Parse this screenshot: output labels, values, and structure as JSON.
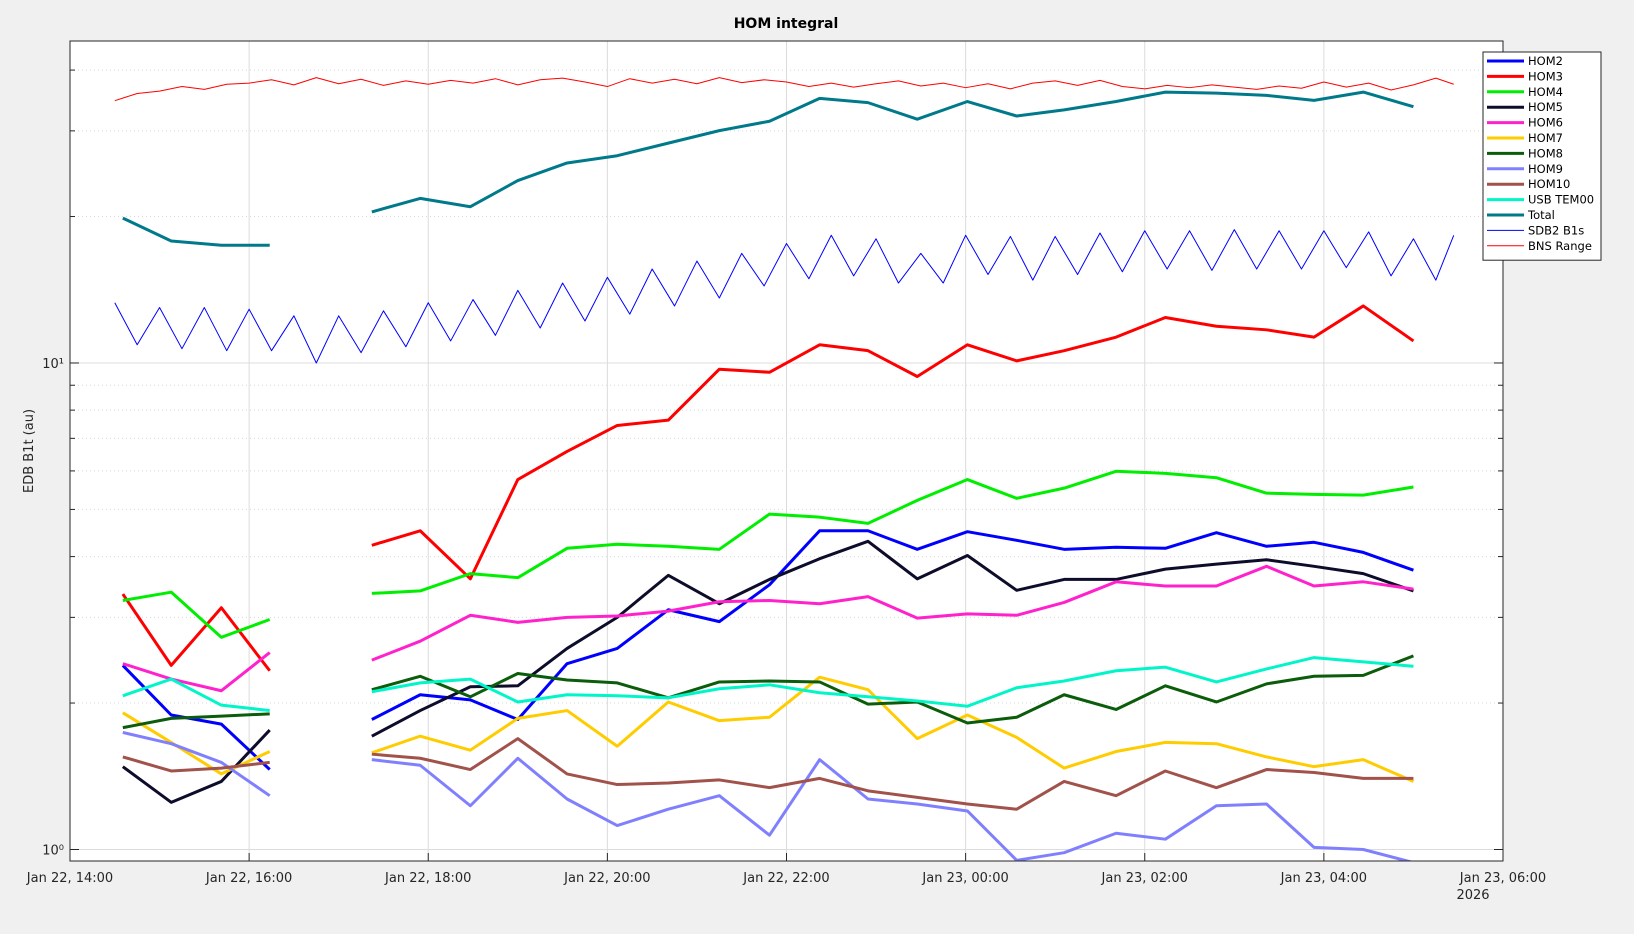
{
  "chart_data": {
    "type": "line",
    "title": "HOM integral",
    "ylabel": "EDB B1t (au)",
    "x_secondary_label": "2026",
    "yscale": "log",
    "grid": true,
    "minor_grid": true,
    "legend": "top-right",
    "xlim": [
      14,
      30
    ],
    "xticks": [
      {
        "value": 14,
        "label": "Jan 22, 14:00"
      },
      {
        "value": 16,
        "label": "Jan 22, 16:00"
      },
      {
        "value": 18,
        "label": "Jan 22, 18:00"
      },
      {
        "value": 20,
        "label": "Jan 22, 20:00"
      },
      {
        "value": 22,
        "label": "Jan 22, 22:00"
      },
      {
        "value": 24,
        "label": "Jan 23, 00:00"
      },
      {
        "value": 26,
        "label": "Jan 23, 02:00"
      },
      {
        "value": 28,
        "label": "Jan 23, 04:00"
      },
      {
        "value": 30,
        "label": "Jan 23, 06:00"
      }
    ],
    "ylim": [
      0.947,
      45.9
    ],
    "yticks": [
      {
        "value": 1,
        "label": "10⁰"
      },
      {
        "value": 10,
        "label": "10¹"
      }
    ],
    "yminorticks": [
      2,
      3,
      4,
      5,
      6,
      7,
      8,
      9,
      20,
      30,
      40
    ],
    "x": [
      14.59,
      15.13,
      15.69,
      16.23,
      16.8,
      17.37,
      17.91,
      18.47,
      19.0,
      19.55,
      20.11,
      20.68,
      21.25,
      21.81,
      22.37,
      22.91,
      23.46,
      24.02,
      24.57,
      25.1,
      25.68,
      26.23,
      26.8,
      27.36,
      27.89,
      28.44,
      29.0
    ],
    "series": [
      {
        "name": "HOM2",
        "color": "#0000ff",
        "width": 3,
        "values": [
          2.39,
          1.89,
          1.81,
          1.46,
          null,
          1.85,
          2.08,
          2.03,
          1.85,
          2.41,
          2.59,
          3.11,
          2.94,
          3.5,
          4.52,
          4.52,
          4.14,
          4.5,
          4.32,
          4.14,
          4.18,
          4.16,
          4.48,
          4.2,
          4.28,
          4.08,
          3.75
        ]
      },
      {
        "name": "HOM3",
        "color": "#ff0000",
        "width": 3,
        "values": [
          3.35,
          2.39,
          3.14,
          2.33,
          null,
          4.22,
          4.52,
          3.6,
          5.76,
          6.58,
          7.44,
          7.63,
          9.71,
          9.57,
          10.9,
          10.6,
          9.38,
          10.9,
          10.1,
          10.6,
          11.3,
          12.4,
          11.9,
          11.7,
          11.3,
          13.1,
          11.1
        ]
      },
      {
        "name": "HOM4",
        "color": "#00ee00",
        "width": 3,
        "values": [
          3.25,
          3.38,
          2.73,
          2.97,
          null,
          3.36,
          3.4,
          3.69,
          3.62,
          4.16,
          4.24,
          4.2,
          4.14,
          4.89,
          4.82,
          4.68,
          5.22,
          5.76,
          5.27,
          5.53,
          5.99,
          5.93,
          5.81,
          5.4,
          5.37,
          5.35,
          5.56
        ]
      },
      {
        "name": "HOM5",
        "color": "#0d0d2b",
        "width": 3,
        "values": [
          1.48,
          1.25,
          1.38,
          1.76,
          null,
          1.71,
          1.93,
          2.16,
          2.17,
          2.59,
          3.0,
          3.66,
          3.2,
          3.59,
          3.96,
          4.3,
          3.6,
          4.02,
          3.41,
          3.59,
          3.59,
          3.77,
          3.86,
          3.94,
          3.82,
          3.69,
          3.4
        ]
      },
      {
        "name": "HOM6",
        "color": "#ff22cc",
        "width": 3,
        "values": [
          2.41,
          2.24,
          2.12,
          2.54,
          null,
          2.45,
          2.68,
          3.03,
          2.93,
          3.0,
          3.02,
          3.09,
          3.23,
          3.25,
          3.2,
          3.31,
          2.99,
          3.05,
          3.03,
          3.22,
          3.55,
          3.48,
          3.48,
          3.82,
          3.48,
          3.55,
          3.43
        ]
      },
      {
        "name": "HOM7",
        "color": "#ffcc00",
        "width": 3,
        "values": [
          1.91,
          1.66,
          1.43,
          1.59,
          null,
          1.58,
          1.71,
          1.6,
          1.86,
          1.93,
          1.63,
          2.01,
          1.84,
          1.87,
          2.26,
          2.13,
          1.69,
          1.89,
          1.7,
          1.47,
          1.59,
          1.66,
          1.65,
          1.55,
          1.48,
          1.53,
          1.38
        ]
      },
      {
        "name": "HOM8",
        "color": "#0b5c0b",
        "width": 3,
        "values": [
          1.78,
          1.86,
          1.88,
          1.9,
          null,
          2.13,
          2.27,
          2.06,
          2.3,
          2.23,
          2.2,
          2.05,
          2.21,
          2.22,
          2.21,
          1.99,
          2.01,
          1.82,
          1.87,
          2.08,
          1.94,
          2.17,
          2.01,
          2.19,
          2.27,
          2.28,
          2.5
        ]
      },
      {
        "name": "HOM9",
        "color": "#8080ff",
        "width": 3,
        "values": [
          1.74,
          1.65,
          1.51,
          1.29,
          null,
          1.53,
          1.49,
          1.23,
          1.54,
          1.27,
          1.12,
          1.21,
          1.29,
          1.07,
          1.53,
          1.27,
          1.24,
          1.2,
          0.95,
          0.985,
          1.08,
          1.05,
          1.23,
          1.24,
          1.01,
          1.0,
          0.94
        ]
      },
      {
        "name": "HOM10",
        "color": "#a0524b",
        "width": 3,
        "values": [
          1.55,
          1.45,
          1.47,
          1.51,
          null,
          1.57,
          1.54,
          1.46,
          1.69,
          1.43,
          1.36,
          1.37,
          1.39,
          1.34,
          1.4,
          1.32,
          1.28,
          1.24,
          1.21,
          1.38,
          1.29,
          1.45,
          1.34,
          1.46,
          1.44,
          1.4,
          1.4
        ]
      },
      {
        "name": "USB TEM00",
        "color": "#00f5c8",
        "width": 3,
        "values": [
          2.07,
          2.24,
          1.98,
          1.93,
          null,
          2.11,
          2.2,
          2.24,
          2.01,
          2.08,
          2.07,
          2.05,
          2.14,
          2.18,
          2.1,
          2.06,
          2.02,
          1.97,
          2.15,
          2.22,
          2.33,
          2.37,
          2.21,
          2.35,
          2.48,
          2.43,
          2.38
        ]
      },
      {
        "name": "Total",
        "color": "#007a8a",
        "width": 3,
        "values": [
          19.85,
          17.81,
          17.46,
          17.46,
          null,
          20.44,
          21.79,
          20.95,
          23.71,
          25.77,
          26.67,
          28.31,
          30.03,
          31.4,
          34.98,
          34.29,
          31.7,
          34.47,
          32.18,
          33.13,
          34.47,
          36.04,
          35.86,
          35.49,
          34.65,
          36.04,
          33.63
        ]
      },
      {
        "name": "SDB2 B1s",
        "color": "#0000ff",
        "width": 1,
        "x": [
          14.5,
          14.75,
          15.0,
          15.25,
          15.5,
          15.75,
          16.0,
          16.25,
          16.5,
          16.75,
          17.0,
          17.25,
          17.5,
          17.75,
          18.0,
          18.25,
          18.5,
          18.75,
          19.0,
          19.25,
          19.5,
          19.75,
          20.0,
          20.25,
          20.5,
          20.75,
          21.0,
          21.25,
          21.5,
          21.75,
          22.0,
          22.25,
          22.5,
          22.75,
          23.0,
          23.25,
          23.5,
          23.75,
          24.0,
          24.25,
          24.5,
          24.75,
          25.0,
          25.25,
          25.5,
          25.75,
          26.0,
          26.25,
          26.5,
          26.75,
          27.0,
          27.25,
          27.5,
          27.75,
          28.0,
          28.25,
          28.5,
          28.75,
          29.0,
          29.25,
          29.45
        ],
        "values": [
          13.3,
          10.9,
          13.0,
          10.7,
          13.0,
          10.6,
          12.9,
          10.6,
          12.5,
          10.0,
          12.5,
          10.5,
          12.8,
          10.8,
          13.3,
          11.1,
          13.5,
          11.4,
          14.1,
          11.8,
          14.6,
          12.2,
          15.0,
          12.6,
          15.6,
          13.1,
          16.2,
          13.6,
          16.8,
          14.4,
          17.6,
          14.9,
          18.3,
          15.1,
          18.0,
          14.6,
          16.8,
          14.6,
          18.3,
          15.2,
          18.2,
          14.8,
          18.2,
          15.2,
          18.5,
          15.4,
          18.7,
          15.6,
          18.7,
          15.5,
          18.8,
          15.6,
          18.7,
          15.6,
          18.7,
          15.7,
          18.6,
          15.1,
          18.0,
          14.8,
          18.3
        ]
      },
      {
        "name": "BNS Range",
        "color": "#ff0000",
        "width": 1,
        "x": [
          14.5,
          14.75,
          15.0,
          15.25,
          15.5,
          15.75,
          16.0,
          16.25,
          16.5,
          16.75,
          17.0,
          17.25,
          17.5,
          17.75,
          18.0,
          18.25,
          18.5,
          18.75,
          19.0,
          19.25,
          19.5,
          19.75,
          20.0,
          20.25,
          20.5,
          20.75,
          21.0,
          21.25,
          21.5,
          21.75,
          22.0,
          22.25,
          22.5,
          22.75,
          23.0,
          23.25,
          23.5,
          23.75,
          24.0,
          24.25,
          24.5,
          24.75,
          25.0,
          25.25,
          25.5,
          25.75,
          26.0,
          26.25,
          26.5,
          26.75,
          27.0,
          27.25,
          27.5,
          27.75,
          28.0,
          28.25,
          28.5,
          28.75,
          29.0,
          29.25,
          29.45
        ],
        "values": [
          34.6,
          35.8,
          36.2,
          37.0,
          36.5,
          37.4,
          37.6,
          38.2,
          37.3,
          38.6,
          37.5,
          38.3,
          37.2,
          38.0,
          37.4,
          38.1,
          37.6,
          38.4,
          37.3,
          38.2,
          38.5,
          37.8,
          37.0,
          38.4,
          37.6,
          38.3,
          37.5,
          38.6,
          37.7,
          38.2,
          37.8,
          37.0,
          37.6,
          36.9,
          37.5,
          38.0,
          37.1,
          37.6,
          36.8,
          37.5,
          36.6,
          37.6,
          38.0,
          37.2,
          38.1,
          37.0,
          36.6,
          37.2,
          36.8,
          37.3,
          36.9,
          36.5,
          37.1,
          36.7,
          37.8,
          36.9,
          37.6,
          36.4,
          37.3,
          38.5,
          37.4
        ]
      }
    ]
  }
}
